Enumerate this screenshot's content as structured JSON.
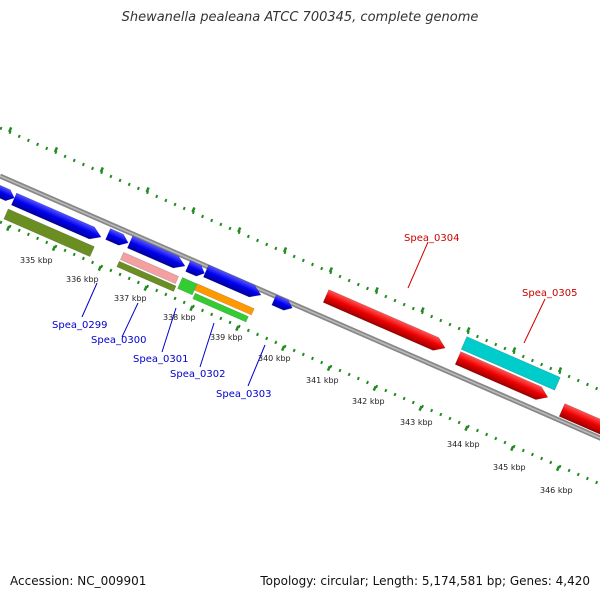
{
  "title": "Shewanella pealeana ATCC 700345, complete genome",
  "footer": {
    "accession": "Accession: NC_009901",
    "summary": "Topology: circular; Length: 5,174,581 bp; Genes: 4,420"
  },
  "scale_labels": [
    "335 kbp",
    "336 kbp",
    "337 kbp",
    "338 kbp",
    "339 kbp",
    "340 kbp",
    "341 kbp",
    "342 kbp",
    "343 kbp",
    "344 kbp",
    "345 kbp",
    "346 kbp"
  ],
  "gene_labels": [
    {
      "text": "Spea_0299",
      "color": "#0000cc"
    },
    {
      "text": "Spea_0300",
      "color": "#0000cc"
    },
    {
      "text": "Spea_0301",
      "color": "#0000cc"
    },
    {
      "text": "Spea_0302",
      "color": "#0000cc"
    },
    {
      "text": "Spea_0303",
      "color": "#0000cc"
    },
    {
      "text": "Spea_0304",
      "color": "#cc0000"
    },
    {
      "text": "Spea_0305",
      "color": "#cc0000"
    }
  ],
  "colors": {
    "backbone": "#888888",
    "forward_cds": "#0000ee",
    "reverse_cds": "#ee0000",
    "rna": "#00cccc",
    "olive": "#6b8e23",
    "pink": "#f4a0a0",
    "light_green": "#33cc33",
    "orange": "#ff9900",
    "tick": "#228b22"
  }
}
